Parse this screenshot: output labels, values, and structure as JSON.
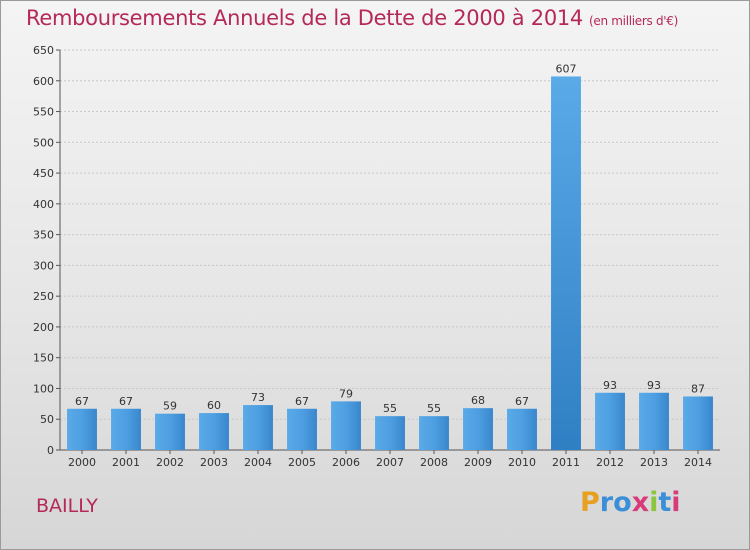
{
  "chart_data": {
    "type": "bar",
    "title": "Remboursements Annuels de la Dette de 2000 à 2014",
    "subtitle": "(en milliers d'€)",
    "categories": [
      "2000",
      "2001",
      "2002",
      "2003",
      "2004",
      "2005",
      "2006",
      "2007",
      "2008",
      "2009",
      "2010",
      "2011",
      "2012",
      "2013",
      "2014"
    ],
    "values": [
      67,
      67,
      59,
      60,
      73,
      67,
      79,
      55,
      55,
      68,
      67,
      607,
      93,
      93,
      87
    ],
    "ylim": [
      0,
      650
    ],
    "yticks": [
      0,
      50,
      100,
      150,
      200,
      250,
      300,
      350,
      400,
      450,
      500,
      550,
      600,
      650
    ],
    "grid": true,
    "bar_color": "#4a9be0"
  },
  "footer": {
    "commune": "BAILLY",
    "logo_letters": [
      "P",
      "r",
      "o",
      "x",
      "i",
      "t",
      "i"
    ],
    "logo_colors": [
      "#e8a020",
      "#3a8fd8",
      "#3a8fd8",
      "#d83a7a",
      "#8cc63f",
      "#3a8fd8",
      "#d83a7a"
    ]
  }
}
